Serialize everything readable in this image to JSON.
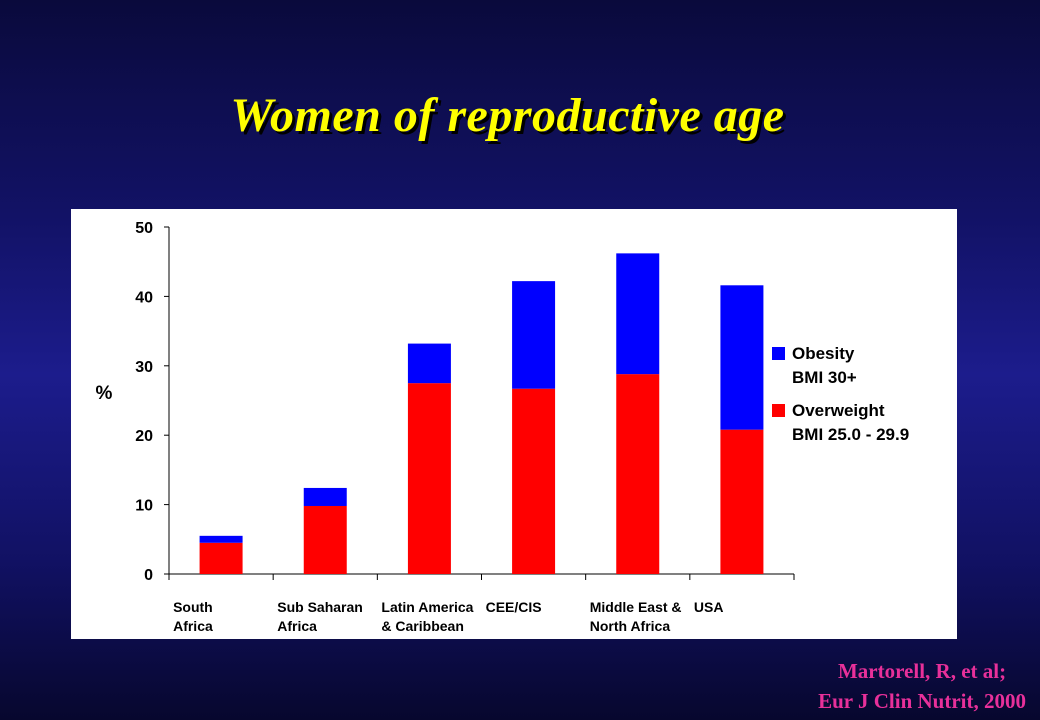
{
  "slide": {
    "title": "Women of reproductive age",
    "citation_line1": "Martorell, R, et al;",
    "citation_line2": "Eur J Clin Nutrit, 2000"
  },
  "colors": {
    "title": "#ffff00",
    "citation": "#e8309a",
    "overweight": "#ff0000",
    "obesity": "#0000ff"
  },
  "chart_data": {
    "type": "bar",
    "stacked": true,
    "title": "",
    "xlabel": "",
    "ylabel": "%",
    "ylim": [
      0,
      50
    ],
    "yticks": [
      0,
      10,
      20,
      30,
      40,
      50
    ],
    "grid": false,
    "legend_position": "right",
    "categories": [
      [
        "South",
        "Africa"
      ],
      [
        "Sub Saharan",
        "Africa"
      ],
      [
        "Latin America",
        "& Caribbean"
      ],
      [
        "CEE/CIS"
      ],
      [
        "Middle East &",
        "North Africa"
      ],
      [
        "USA"
      ]
    ],
    "series": [
      {
        "key": "overweight",
        "color": "#ff0000",
        "legend": [
          "Overweight",
          "BMI 25.0 - 29.9"
        ],
        "values": [
          4.5,
          9.8,
          27.5,
          26.7,
          28.8,
          20.8
        ]
      },
      {
        "key": "obesity",
        "color": "#0000ff",
        "legend": [
          "Obesity",
          "BMI 30+"
        ],
        "values": [
          1.0,
          2.6,
          5.7,
          15.5,
          17.4,
          20.8
        ]
      }
    ]
  }
}
